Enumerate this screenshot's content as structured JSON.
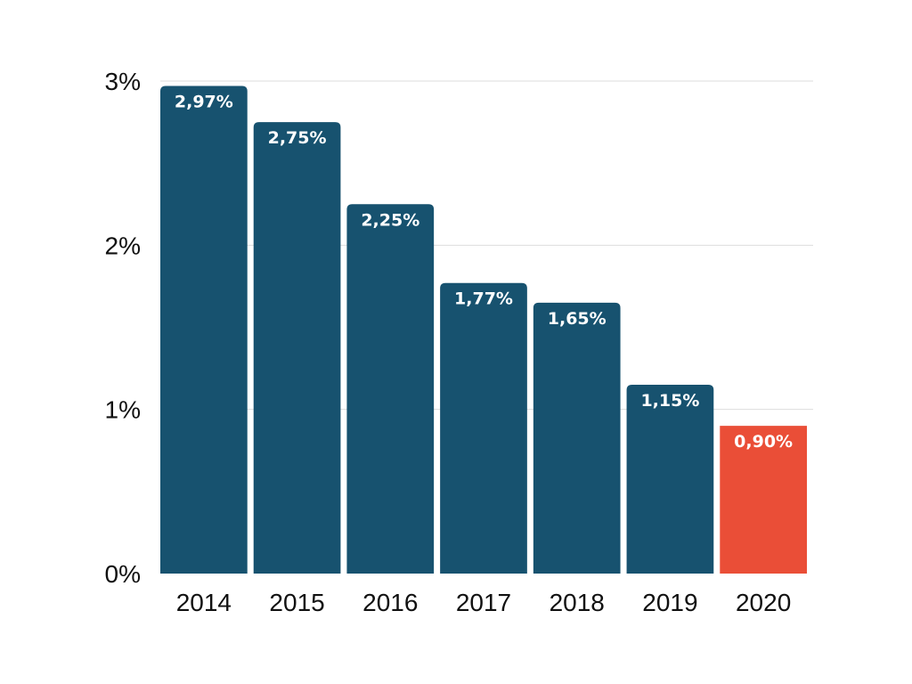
{
  "chart_data": {
    "type": "bar",
    "categories": [
      "2014",
      "2015",
      "2016",
      "2017",
      "2018",
      "2019",
      "2020"
    ],
    "values": [
      2.97,
      2.75,
      2.25,
      1.77,
      1.65,
      1.15,
      0.9
    ],
    "data_labels": [
      "2,97%",
      "2,75%",
      "2,25%",
      "1,77%",
      "1,65%",
      "1,15%",
      "0,90%"
    ],
    "yticks": [
      0,
      1,
      2,
      3
    ],
    "ytick_labels": [
      "0%",
      "1%",
      "2%",
      "3%"
    ],
    "ylim": [
      0,
      3
    ],
    "grid": true,
    "legend": "none",
    "colors": {
      "bar": "#17526f",
      "highlight": "#ea4e37",
      "highlight_category": "2020"
    }
  }
}
